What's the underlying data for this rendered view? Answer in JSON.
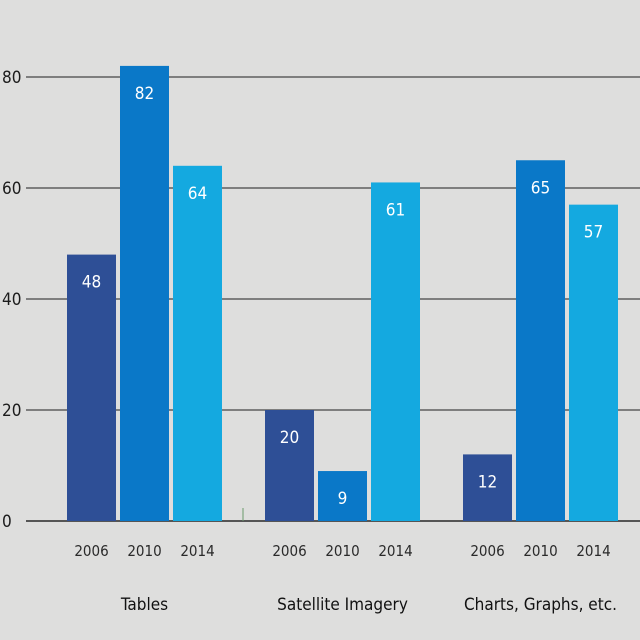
{
  "chart_data": {
    "type": "bar",
    "title": "",
    "xlabel": "",
    "ylabel": "",
    "ylim": [
      0,
      80
    ],
    "yticks": [
      0,
      20,
      40,
      60,
      80
    ],
    "grid": true,
    "legend": "none",
    "categories": [
      "Tables",
      "Satellite Imagery",
      "Charts, Graphs, etc."
    ],
    "series": [
      {
        "label": "2006",
        "color": "#2e4f96",
        "values": [
          48,
          20,
          12
        ]
      },
      {
        "label": "2010",
        "color": "#0a78c8",
        "values": [
          82,
          9,
          65
        ]
      },
      {
        "label": "2014",
        "color": "#14a9e0",
        "values": [
          64,
          61,
          57
        ]
      }
    ]
  }
}
